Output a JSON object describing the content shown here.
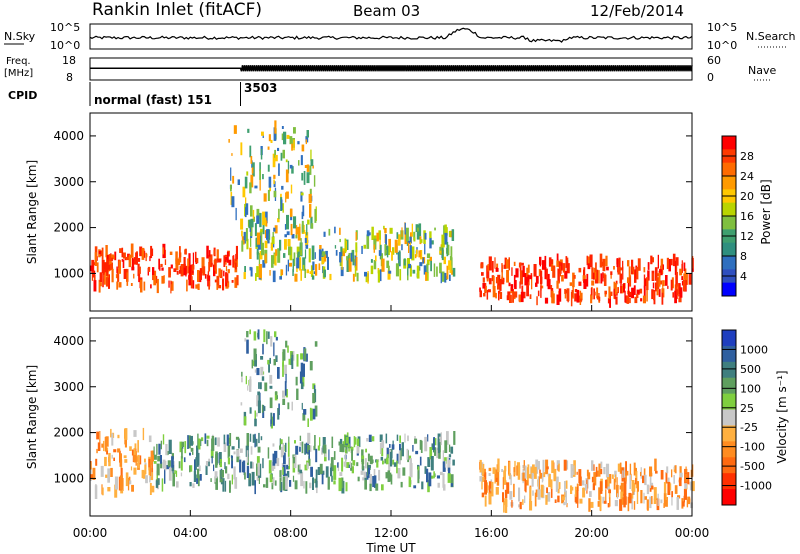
{
  "header": {
    "station": "Rankin Inlet (fitACF)",
    "beam": "Beam 03",
    "date": "12/Feb/2014"
  },
  "nsky_panel": {
    "left_label": "N.Sky",
    "left_ticks": [
      "10^5",
      "10^0"
    ],
    "right_label": "N.Search",
    "right_ticks": [
      "10^5",
      "10^0"
    ]
  },
  "freq_panel": {
    "left_label_1": "Freq.",
    "left_label_2": "[MHz]",
    "left_ticks": [
      "18",
      "8"
    ],
    "right_label": "Nave",
    "right_ticks": [
      "60",
      "0"
    ]
  },
  "cpid_panel": {
    "label": "CPID",
    "segments": [
      {
        "label": "normal (fast) 151",
        "start_hour": 0
      },
      {
        "label": "3503",
        "start_hour": 6
      }
    ]
  },
  "power_panel": {
    "ylabel": "Slant Range [km]",
    "cbar_label": "Power [dB]",
    "cbar_ticks": [
      "28",
      "24",
      "20",
      "16",
      "12",
      "8",
      "4"
    ],
    "cbar_colors": [
      "#ff0000",
      "#ff3a00",
      "#ff6b00",
      "#ff9a00",
      "#ffc800",
      "#b9d400",
      "#7fbf3f",
      "#3f9f6f",
      "#2f8f7f",
      "#2f6fbf",
      "#2f4fbf",
      "#0000ff"
    ]
  },
  "velocity_panel": {
    "ylabel": "Slant Range [km]",
    "cbar_label": "Velocity [m s⁻¹]",
    "cbar_ticks": [
      "1000",
      "500",
      "100",
      "25",
      "-25",
      "-100",
      "-500",
      "-1000"
    ],
    "cbar_colors": [
      "#1f3fbf",
      "#2f5f9f",
      "#3f7f7f",
      "#5f9f5f",
      "#7fcf3f",
      "#c8c8c8",
      "#ffb040",
      "#ff8c20",
      "#ff6a10",
      "#ff3000",
      "#ff0000"
    ]
  },
  "xaxis": {
    "label": "Time UT",
    "ticks": [
      "00:00",
      "04:00",
      "08:00",
      "12:00",
      "16:00",
      "20:00",
      "00:00"
    ]
  },
  "chart_data": {
    "type": "heatmap",
    "title": "Rankin Inlet (fitACF)",
    "x_range_hours": [
      0,
      24
    ],
    "y_range_km": [
      180,
      4500
    ],
    "y_ticks_km": [
      1000,
      2000,
      3000,
      4000
    ],
    "nsky_level": 0.45,
    "freq_level": 0.35,
    "power_features": [
      {
        "t0": 0.0,
        "t1": 6.0,
        "r0": 700,
        "r1": 1500,
        "level": "high"
      },
      {
        "t0": 6.0,
        "t1": 14.5,
        "r0": 900,
        "r1": 2000,
        "level": "mid"
      },
      {
        "t0": 15.5,
        "t1": 24.0,
        "r0": 400,
        "r1": 1300,
        "level": "high"
      },
      {
        "t0": 5.5,
        "t1": 9.0,
        "r0": 2000,
        "r1": 4200,
        "level": "mid"
      }
    ],
    "velocity_features": [
      {
        "t0": 0.0,
        "t1": 2.5,
        "r0": 700,
        "r1": 2000,
        "sign": "negative"
      },
      {
        "t0": 2.5,
        "t1": 14.5,
        "r0": 800,
        "r1": 1900,
        "sign": "positive"
      },
      {
        "t0": 15.5,
        "t1": 24.0,
        "r0": 400,
        "r1": 1300,
        "sign": "negative"
      },
      {
        "t0": 6.0,
        "t1": 9.0,
        "r0": 2200,
        "r1": 4200,
        "sign": "positive"
      }
    ]
  }
}
